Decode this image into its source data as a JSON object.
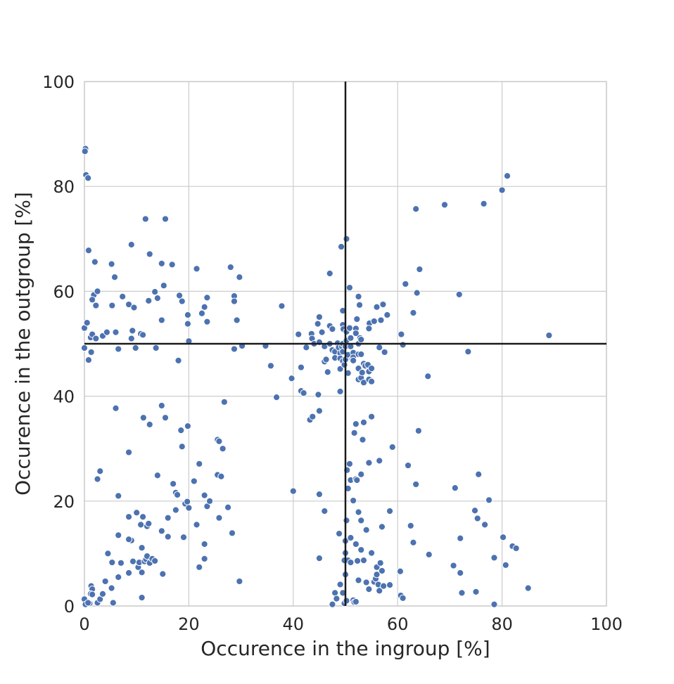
{
  "chart_data": {
    "type": "scatter",
    "title": "",
    "xlabel": "Occurence in the ingroup [%]",
    "ylabel": "Occurence in the outgroup [%]",
    "xlim": [
      0,
      100
    ],
    "ylim": [
      0,
      100
    ],
    "x_ticks": [
      "0",
      "20",
      "40",
      "60",
      "80",
      "100"
    ],
    "y_ticks": [
      "0",
      "20",
      "40",
      "60",
      "80",
      "100"
    ],
    "grid": true,
    "reference_lines": {
      "vertical_x": 50,
      "horizontal_y": 50,
      "color": "#1a1a1a"
    },
    "point_color": "#4c72b0",
    "points": [
      [
        0.2,
        87.2
      ],
      [
        0.1,
        86.7
      ],
      [
        0.3,
        82.2
      ],
      [
        0.7,
        81.6
      ],
      [
        0.8,
        67.8
      ],
      [
        2.0,
        65.6
      ],
      [
        0.0,
        53.0
      ],
      [
        0.0,
        49.2
      ],
      [
        1.2,
        51.2
      ],
      [
        1.5,
        51.8
      ],
      [
        2.2,
        51.0
      ],
      [
        0.8,
        46.9
      ],
      [
        0.5,
        54.0
      ],
      [
        1.8,
        59.3
      ],
      [
        1.5,
        58.4
      ],
      [
        2.5,
        60.0
      ],
      [
        2.2,
        57.3
      ],
      [
        1.3,
        48.4
      ],
      [
        3.5,
        51.5
      ],
      [
        4.3,
        52.2
      ],
      [
        5.3,
        57.3
      ],
      [
        6.0,
        52.2
      ],
      [
        5.2,
        65.2
      ],
      [
        5.8,
        62.7
      ],
      [
        7.3,
        59.0
      ],
      [
        8.5,
        57.5
      ],
      [
        9.0,
        68.9
      ],
      [
        9.2,
        52.5
      ],
      [
        9.0,
        51.0
      ],
      [
        9.8,
        49.2
      ],
      [
        9.5,
        56.9
      ],
      [
        6.5,
        49.0
      ],
      [
        11.7,
        73.8
      ],
      [
        12.3,
        58.2
      ],
      [
        12.5,
        67.1
      ],
      [
        13.5,
        59.9
      ],
      [
        14.0,
        58.7
      ],
      [
        14.8,
        65.3
      ],
      [
        15.2,
        61.1
      ],
      [
        14.8,
        54.5
      ],
      [
        10.8,
        51.9
      ],
      [
        11.2,
        51.7
      ],
      [
        13.7,
        49.2
      ],
      [
        15.5,
        73.8
      ],
      [
        16.8,
        65.1
      ],
      [
        18.2,
        59.2
      ],
      [
        18.7,
        58.1
      ],
      [
        18.0,
        46.8
      ],
      [
        19.8,
        55.5
      ],
      [
        19.8,
        53.8
      ],
      [
        20.0,
        50.5
      ],
      [
        21.5,
        64.3
      ],
      [
        22.5,
        55.8
      ],
      [
        23.0,
        57.0
      ],
      [
        23.5,
        54.2
      ],
      [
        23.5,
        58.8
      ],
      [
        28.0,
        64.6
      ],
      [
        28.7,
        59.1
      ],
      [
        28.7,
        58.1
      ],
      [
        29.2,
        54.5
      ],
      [
        28.7,
        49.0
      ],
      [
        30.2,
        49.6
      ],
      [
        29.7,
        62.7
      ],
      [
        34.7,
        49.6
      ],
      [
        35.7,
        45.8
      ],
      [
        37.8,
        57.2
      ],
      [
        39.7,
        43.4
      ],
      [
        41.0,
        51.8
      ],
      [
        41.5,
        45.5
      ],
      [
        41.5,
        41.0
      ],
      [
        42.0,
        40.6
      ],
      [
        42.5,
        49.3
      ],
      [
        43.5,
        51.9
      ],
      [
        43.6,
        51.0
      ],
      [
        44.0,
        50.0
      ],
      [
        44.7,
        53.8
      ],
      [
        45.0,
        55.1
      ],
      [
        45.5,
        52.2
      ],
      [
        45.0,
        50.3
      ],
      [
        46.0,
        49.5
      ],
      [
        46.0,
        46.6
      ],
      [
        46.3,
        47.0
      ],
      [
        46.6,
        44.6
      ],
      [
        47.0,
        50.0
      ],
      [
        47.0,
        53.4
      ],
      [
        47.5,
        52.8
      ],
      [
        47.0,
        63.4
      ],
      [
        47.5,
        48.8
      ],
      [
        48.0,
        48.5
      ],
      [
        48.0,
        47.3
      ],
      [
        48.5,
        50.1
      ],
      [
        48.7,
        49.3
      ],
      [
        49.0,
        48.2
      ],
      [
        49.0,
        47.2
      ],
      [
        49.0,
        45.2
      ],
      [
        49.3,
        49.5
      ],
      [
        49.5,
        50.0
      ],
      [
        49.5,
        46.7
      ],
      [
        49.5,
        56.3
      ],
      [
        49.5,
        53.6
      ],
      [
        49.6,
        52.8
      ],
      [
        49.0,
        40.9
      ],
      [
        49.2,
        68.5
      ],
      [
        49.5,
        48.5
      ],
      [
        49.8,
        46.0
      ],
      [
        50.0,
        47.0
      ],
      [
        50.0,
        49.5
      ],
      [
        50.2,
        50.6
      ],
      [
        50.2,
        52.3
      ],
      [
        50.2,
        70.0
      ],
      [
        50.5,
        47.9
      ],
      [
        50.5,
        44.4
      ],
      [
        50.8,
        60.7
      ],
      [
        50.8,
        53.0
      ],
      [
        51.0,
        51.1
      ],
      [
        51.0,
        49.5
      ],
      [
        51.3,
        47.1
      ],
      [
        51.5,
        48.3
      ],
      [
        51.5,
        47.4
      ],
      [
        51.5,
        46.8
      ],
      [
        52.0,
        52.9
      ],
      [
        52.0,
        52.0
      ],
      [
        52.2,
        54.7
      ],
      [
        52.5,
        59.0
      ],
      [
        52.5,
        50.0
      ],
      [
        52.5,
        48.0
      ],
      [
        52.7,
        57.4
      ],
      [
        52.5,
        45.3
      ],
      [
        52.5,
        43.2
      ],
      [
        52.8,
        51.1
      ],
      [
        53.0,
        50.8
      ],
      [
        53.0,
        48.0
      ],
      [
        53.0,
        43.5
      ],
      [
        53.2,
        44.5
      ],
      [
        53.5,
        46.2
      ],
      [
        53.5,
        42.6
      ],
      [
        53.8,
        45.8
      ],
      [
        54.3,
        46.0
      ],
      [
        54.5,
        44.7
      ],
      [
        54.5,
        43.2
      ],
      [
        54.6,
        53.9
      ],
      [
        54.5,
        52.9
      ],
      [
        55.0,
        45.3
      ],
      [
        55.0,
        42.8
      ],
      [
        55.5,
        54.3
      ],
      [
        56.0,
        57.0
      ],
      [
        56.5,
        49.3
      ],
      [
        56.8,
        54.5
      ],
      [
        57.2,
        57.5
      ],
      [
        57.5,
        48.4
      ],
      [
        58.0,
        55.5
      ],
      [
        60.7,
        51.8
      ],
      [
        61.0,
        49.8
      ],
      [
        61.5,
        61.4
      ],
      [
        63.0,
        55.9
      ],
      [
        63.5,
        75.7
      ],
      [
        63.7,
        59.7
      ],
      [
        64.2,
        64.2
      ],
      [
        65.8,
        43.8
      ],
      [
        69.0,
        76.5
      ],
      [
        71.8,
        59.4
      ],
      [
        73.5,
        48.5
      ],
      [
        76.5,
        76.7
      ],
      [
        80.0,
        79.3
      ],
      [
        81.0,
        82.0
      ],
      [
        89.0,
        51.6
      ],
      [
        6.0,
        37.7
      ],
      [
        6.5,
        21.0
      ],
      [
        8.5,
        29.3
      ],
      [
        11.3,
        35.9
      ],
      [
        12.5,
        34.6
      ],
      [
        14.0,
        24.9
      ],
      [
        14.8,
        38.2
      ],
      [
        15.5,
        35.9
      ],
      [
        18.5,
        33.5
      ],
      [
        18.7,
        30.4
      ],
      [
        19.8,
        34.3
      ],
      [
        17.0,
        23.3
      ],
      [
        17.5,
        21.6
      ],
      [
        17.8,
        21.2
      ],
      [
        19.3,
        19.5
      ],
      [
        19.7,
        19.9
      ],
      [
        21.0,
        23.8
      ],
      [
        21.5,
        15.5
      ],
      [
        22.0,
        27.1
      ],
      [
        23.0,
        21.1
      ],
      [
        23.5,
        19.0
      ],
      [
        24.0,
        20.0
      ],
      [
        25.5,
        31.7
      ],
      [
        25.8,
        31.4
      ],
      [
        25.5,
        25.0
      ],
      [
        26.2,
        24.7
      ],
      [
        26.5,
        30.0
      ],
      [
        26.8,
        38.9
      ],
      [
        27.5,
        18.8
      ],
      [
        28.3,
        13.9
      ],
      [
        2.5,
        24.2
      ],
      [
        3.0,
        25.7
      ],
      [
        36.8,
        39.8
      ],
      [
        43.2,
        35.5
      ],
      [
        43.7,
        36.1
      ],
      [
        45.0,
        37.2
      ],
      [
        44.8,
        40.3
      ],
      [
        45.0,
        21.3
      ],
      [
        46.0,
        18.1
      ],
      [
        48.8,
        13.8
      ],
      [
        50.0,
        6.0
      ],
      [
        50.0,
        10.1
      ],
      [
        50.0,
        12.4
      ],
      [
        49.8,
        8.7
      ],
      [
        50.2,
        16.3
      ],
      [
        50.3,
        25.9
      ],
      [
        50.5,
        22.4
      ],
      [
        50.8,
        27.1
      ],
      [
        51.0,
        24.0
      ],
      [
        51.5,
        20.1
      ],
      [
        52.0,
        34.7
      ],
      [
        51.7,
        33.0
      ],
      [
        52.0,
        24.2
      ],
      [
        52.2,
        24.0
      ],
      [
        52.5,
        17.9
      ],
      [
        53.0,
        25.1
      ],
      [
        53.0,
        16.3
      ],
      [
        53.5,
        35.0
      ],
      [
        53.3,
        31.7
      ],
      [
        54.0,
        14.5
      ],
      [
        54.5,
        27.3
      ],
      [
        55.0,
        36.1
      ],
      [
        56.5,
        27.7
      ],
      [
        57.0,
        15.1
      ],
      [
        58.5,
        18.1
      ],
      [
        59.0,
        30.3
      ],
      [
        62.0,
        26.8
      ],
      [
        62.5,
        15.3
      ],
      [
        63.0,
        12.1
      ],
      [
        63.5,
        23.2
      ],
      [
        64.0,
        33.4
      ],
      [
        66.0,
        9.8
      ],
      [
        40.0,
        21.9
      ],
      [
        8.5,
        17.0
      ],
      [
        9.0,
        12.5
      ],
      [
        10.0,
        17.8
      ],
      [
        10.8,
        15.5
      ],
      [
        11.2,
        17.0
      ],
      [
        12.0,
        15.2
      ],
      [
        12.3,
        15.7
      ],
      [
        14.8,
        14.3
      ],
      [
        16.0,
        16.8
      ],
      [
        16.0,
        13.2
      ],
      [
        17.5,
        18.3
      ],
      [
        19.0,
        13.1
      ],
      [
        20.0,
        18.7
      ],
      [
        22.0,
        7.4
      ],
      [
        23.0,
        11.8
      ],
      [
        23.0,
        9.0
      ],
      [
        25.8,
        16.8
      ],
      [
        29.7,
        4.7
      ],
      [
        4.5,
        10.0
      ],
      [
        5.3,
        8.3
      ],
      [
        6.5,
        5.5
      ],
      [
        7.0,
        8.2
      ],
      [
        8.5,
        6.3
      ],
      [
        8.5,
        12.7
      ],
      [
        9.3,
        8.5
      ],
      [
        10.3,
        7.4
      ],
      [
        10.5,
        8.3
      ],
      [
        11.0,
        11.1
      ],
      [
        11.5,
        8.5
      ],
      [
        11.8,
        8.9
      ],
      [
        12.0,
        9.5
      ],
      [
        12.5,
        8.2
      ],
      [
        13.0,
        9.0
      ],
      [
        13.5,
        8.6
      ],
      [
        11.0,
        6.4
      ],
      [
        15.0,
        6.1
      ],
      [
        11.0,
        1.6
      ],
      [
        6.5,
        13.5
      ],
      [
        1.3,
        3.8
      ],
      [
        1.5,
        3.2
      ],
      [
        1.2,
        2.3
      ],
      [
        1.5,
        2.2
      ],
      [
        1.0,
        0.5
      ],
      [
        2.5,
        0.6
      ],
      [
        3.0,
        1.3
      ],
      [
        3.5,
        2.3
      ],
      [
        4.0,
        4.7
      ],
      [
        5.2,
        3.4
      ],
      [
        5.5,
        0.6
      ],
      [
        0.0,
        1.3
      ],
      [
        0.2,
        0.3
      ],
      [
        0.7,
        0.6
      ],
      [
        45.0,
        9.1
      ],
      [
        47.5,
        0.3
      ],
      [
        48.0,
        2.5
      ],
      [
        48.3,
        1.4
      ],
      [
        49.0,
        4.1
      ],
      [
        49.5,
        2.5
      ],
      [
        49.8,
        0.5
      ],
      [
        50.2,
        1.0
      ],
      [
        50.5,
        8.7
      ],
      [
        51.0,
        13.0
      ],
      [
        51.0,
        8.3
      ],
      [
        51.5,
        1.1
      ],
      [
        51.7,
        0.7
      ],
      [
        52.0,
        0.8
      ],
      [
        52.0,
        11.8
      ],
      [
        52.3,
        8.6
      ],
      [
        52.5,
        4.9
      ],
      [
        53.0,
        10.7
      ],
      [
        53.5,
        8.7
      ],
      [
        54.0,
        4.5
      ],
      [
        54.5,
        3.2
      ],
      [
        55.0,
        10.1
      ],
      [
        55.5,
        4.6
      ],
      [
        55.8,
        5.2
      ],
      [
        56.0,
        7.4
      ],
      [
        56.0,
        6.0
      ],
      [
        56.3,
        4.1
      ],
      [
        56.5,
        2.9
      ],
      [
        56.7,
        8.2
      ],
      [
        57.0,
        6.7
      ],
      [
        57.3,
        3.8
      ],
      [
        58.5,
        4.0
      ],
      [
        60.5,
        6.6
      ],
      [
        60.6,
        2.0
      ],
      [
        61.0,
        1.5
      ],
      [
        70.7,
        7.7
      ],
      [
        71.0,
        22.5
      ],
      [
        72.0,
        12.9
      ],
      [
        72.0,
        6.3
      ],
      [
        72.3,
        2.5
      ],
      [
        74.8,
        18.2
      ],
      [
        75.0,
        2.7
      ],
      [
        75.3,
        16.7
      ],
      [
        75.5,
        25.1
      ],
      [
        76.7,
        15.5
      ],
      [
        77.5,
        20.2
      ],
      [
        78.5,
        9.2
      ],
      [
        78.5,
        0.3
      ],
      [
        80.2,
        13.1
      ],
      [
        80.7,
        7.8
      ],
      [
        82.0,
        11.4
      ],
      [
        82.7,
        11.0
      ],
      [
        85.0,
        3.4
      ]
    ]
  }
}
